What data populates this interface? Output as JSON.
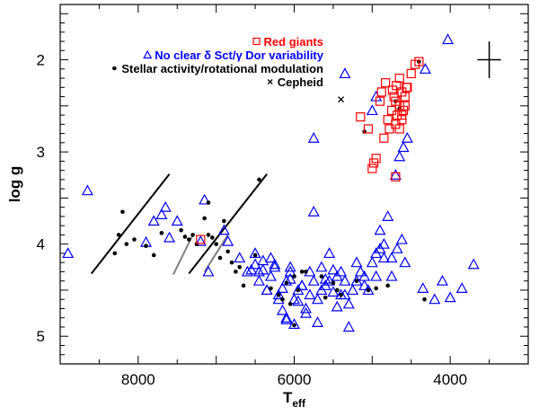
{
  "chart_data": {
    "type": "scatter",
    "xlabel": "T",
    "xlabel_sub": "eff",
    "ylabel": "log g",
    "xlim": [
      9000,
      3000
    ],
    "ylim": [
      5.3,
      1.4
    ],
    "x_ticks": [
      8000,
      6000,
      4000
    ],
    "y_ticks": [
      2,
      3,
      4,
      5
    ],
    "legend_position": "top-right",
    "error_cross": {
      "x": 3500,
      "y": 2.0,
      "dx": 150,
      "dy": 0.2
    },
    "lines": [
      {
        "color": "#000000",
        "points": [
          [
            8600,
            4.32
          ],
          [
            7600,
            3.24
          ]
        ]
      },
      {
        "color": "#000000",
        "points": [
          [
            7350,
            4.32
          ],
          [
            6350,
            3.24
          ]
        ]
      },
      {
        "color": "#808080",
        "points": [
          [
            7550,
            4.33
          ],
          [
            7300,
            3.9
          ]
        ]
      },
      {
        "color": "#808080",
        "points": [
          [
            7150,
            4.3
          ],
          [
            6850,
            3.9
          ]
        ]
      }
    ],
    "series": [
      {
        "name": "Red giants",
        "label_color": "#ff0000",
        "marker": "square",
        "color": "#ff0000",
        "x": [
          4400,
          4450,
          4500,
          4560,
          4620,
          4580,
          4650,
          4700,
          4750,
          4800,
          4830,
          4880,
          4900,
          4650,
          4680,
          4700,
          4720,
          4600,
          4550,
          4580,
          4620,
          4650,
          4690,
          4740,
          4780,
          4850,
          5150,
          4950,
          4980,
          5000,
          5050,
          4700,
          7200,
          4620
        ],
        "y": [
          2.02,
          2.05,
          2.15,
          2.3,
          2.35,
          2.4,
          2.2,
          2.45,
          2.55,
          2.65,
          2.25,
          2.35,
          2.45,
          2.5,
          2.6,
          2.7,
          2.4,
          2.55,
          2.3,
          2.5,
          2.65,
          2.75,
          2.28,
          2.33,
          2.75,
          2.85,
          2.62,
          3.07,
          3.12,
          3.18,
          2.75,
          3.27,
          3.95,
          2.6
        ]
      },
      {
        "name": "No clear δ Sct/γ Dor variability",
        "label_color": "#0000ff",
        "marker": "triangle",
        "color": "#0000ff",
        "x": [
          8900,
          8650,
          7900,
          7800,
          7700,
          7650,
          7600,
          7500,
          7200,
          7150,
          7100,
          6900,
          6850,
          6700,
          6600,
          6550,
          6500,
          6450,
          6400,
          6350,
          6300,
          6250,
          6200,
          6150,
          6100,
          6050,
          6000,
          5950,
          5900,
          5850,
          5800,
          5750,
          5700,
          5650,
          5600,
          5550,
          5500,
          5450,
          5400,
          5350,
          5300,
          5250,
          5200,
          5150,
          5100,
          5050,
          5000,
          4950,
          4900,
          4850,
          4800,
          4750,
          4700,
          4650,
          4600,
          4550,
          4350,
          4200,
          4100,
          4000,
          3850,
          3700,
          6400,
          6300,
          6200,
          6100,
          6000,
          5950,
          5850,
          5700,
          5600,
          5500,
          5450,
          5300,
          6500,
          6450,
          6350,
          6250,
          6150,
          6050,
          5900,
          5800,
          5750,
          5650,
          5550,
          5400,
          5350,
          5200,
          5100,
          4950,
          4900,
          4850,
          4750,
          4680,
          4620,
          4580,
          4030,
          4320,
          4950,
          5000,
          5350,
          5750,
          6050,
          6100
        ],
        "y": [
          4.1,
          3.42,
          3.98,
          3.75,
          3.68,
          3.6,
          3.93,
          3.75,
          3.97,
          3.52,
          4.3,
          3.85,
          3.97,
          4.15,
          4.3,
          4.28,
          4.22,
          4.4,
          4.18,
          4.5,
          4.35,
          4.25,
          4.55,
          4.48,
          4.4,
          4.3,
          4.6,
          4.5,
          4.45,
          4.7,
          4.55,
          4.4,
          4.6,
          4.5,
          4.45,
          4.4,
          4.52,
          4.35,
          4.3,
          4.55,
          4.65,
          4.5,
          4.4,
          4.3,
          4.45,
          4.5,
          4.2,
          4.35,
          4.05,
          4.0,
          3.7,
          4.15,
          3.25,
          3.05,
          2.95,
          2.85,
          4.48,
          4.6,
          4.4,
          4.58,
          4.48,
          4.22,
          4.28,
          4.15,
          4.6,
          4.8,
          4.87,
          4.62,
          4.75,
          4.85,
          4.38,
          4.28,
          4.68,
          4.9,
          4.1,
          4.3,
          4.5,
          4.22,
          4.72,
          4.38,
          4.45,
          4.3,
          3.65,
          4.25,
          4.1,
          4.55,
          4.4,
          4.2,
          4.35,
          4.1,
          3.85,
          4.15,
          4.35,
          4.05,
          3.95,
          4.2,
          1.78,
          2.1,
          2.4,
          2.55,
          2.15,
          2.85,
          4.25,
          4.82
        ]
      },
      {
        "name": "Stellar activity/rotational modulation",
        "label_color": "#000000",
        "marker": "dot",
        "color": "#000000",
        "x": [
          8300,
          8250,
          8200,
          8150,
          8050,
          7900,
          7800,
          7700,
          7450,
          7400,
          7350,
          7300,
          7250,
          7150,
          7100,
          7050,
          7000,
          6950,
          6900,
          6850,
          6800,
          6750,
          6700,
          6650,
          6500,
          6450,
          6200,
          6150,
          6100,
          6050,
          6000,
          5900,
          5850,
          5650,
          5500,
          5450,
          5400,
          5200,
          5050,
          4950,
          4800,
          4650,
          4400,
          5100,
          4700,
          4330,
          7100,
          6300,
          6000,
          5950,
          5600
        ],
        "y": [
          4.1,
          3.9,
          3.65,
          4.0,
          3.95,
          4.02,
          4.12,
          3.88,
          3.85,
          3.92,
          3.95,
          3.9,
          4.0,
          3.72,
          3.9,
          3.93,
          4.0,
          4.15,
          3.75,
          4.08,
          4.2,
          4.3,
          4.25,
          4.45,
          4.12,
          3.3,
          4.55,
          4.6,
          4.42,
          4.65,
          4.88,
          4.3,
          4.3,
          4.35,
          4.42,
          4.5,
          4.55,
          4.4,
          4.5,
          4.48,
          4.45,
          2.53,
          2.02,
          2.78,
          2.45,
          4.6,
          3.55,
          4.48,
          4.35,
          4.5,
          4.58
        ]
      },
      {
        "name": "Cepheid",
        "label_color": "#000000",
        "marker": "cross",
        "color": "#000000",
        "x": [
          5400
        ],
        "y": [
          2.43
        ]
      }
    ]
  }
}
